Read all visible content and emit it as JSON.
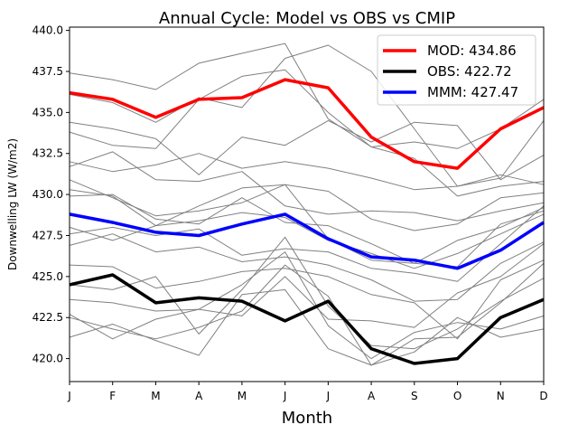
{
  "chart_data": {
    "type": "line",
    "title": "Annual Cycle: Model vs OBS vs CMIP",
    "xlabel": "Month",
    "ylabel": "Downwelling LW (W/m2)",
    "categories": [
      "J",
      "F",
      "M",
      "A",
      "M",
      "J",
      "J",
      "A",
      "S",
      "O",
      "N",
      "D"
    ],
    "ylim": [
      418.6,
      440.2
    ],
    "yticks": [
      420.0,
      422.5,
      425.0,
      427.5,
      430.0,
      432.5,
      435.0,
      437.5,
      440.0
    ],
    "ytick_labels": [
      "420.0",
      "422.5",
      "425.0",
      "427.5",
      "430.0",
      "432.5",
      "435.0",
      "437.5",
      "440.0"
    ],
    "grid": false,
    "legend_position": "top-right",
    "background_series_color": "#808080",
    "background_series": [
      [
        437.4,
        437.0,
        436.4,
        438.0,
        438.6,
        439.2,
        434.6,
        432.9,
        433.2,
        432.8,
        434.0,
        435.8
      ],
      [
        436.1,
        435.6,
        434.4,
        435.9,
        435.3,
        438.3,
        439.1,
        437.5,
        434.0,
        430.5,
        431.0,
        434.5
      ],
      [
        434.4,
        434.0,
        433.4,
        431.2,
        433.5,
        433.0,
        434.5,
        433.2,
        434.4,
        434.2,
        430.9,
        432.4
      ],
      [
        433.8,
        433.0,
        432.8,
        435.8,
        437.2,
        437.6,
        435.0,
        432.9,
        432.2,
        429.9,
        430.5,
        430.8
      ],
      [
        432.0,
        431.4,
        431.8,
        432.5,
        431.6,
        432.0,
        431.6,
        431.0,
        430.3,
        430.5,
        431.2,
        430.6
      ],
      [
        431.7,
        432.6,
        430.9,
        430.8,
        431.4,
        429.3,
        428.8,
        429.0,
        428.9,
        428.4,
        429.0,
        429.5
      ],
      [
        430.9,
        429.8,
        428.7,
        429.0,
        429.5,
        430.6,
        430.2,
        428.5,
        427.8,
        428.2,
        429.8,
        430.1
      ],
      [
        430.3,
        429.9,
        428.1,
        429.3,
        430.4,
        430.6,
        427.3,
        426.0,
        425.8,
        425.6,
        428.2,
        429.0
      ],
      [
        429.9,
        430.0,
        428.5,
        428.2,
        429.8,
        428.3,
        428.1,
        427.0,
        425.8,
        427.2,
        428.0,
        429.2
      ],
      [
        428.0,
        427.2,
        428.1,
        428.4,
        428.9,
        428.6,
        427.2,
        426.4,
        425.5,
        426.4,
        427.6,
        428.8
      ],
      [
        427.6,
        428.0,
        427.5,
        427.9,
        426.3,
        426.7,
        426.5,
        425.5,
        425.2,
        424.7,
        427.0,
        429.3
      ],
      [
        426.9,
        427.6,
        426.5,
        426.8,
        425.9,
        426.2,
        425.7,
        424.8,
        423.5,
        423.6,
        425.8,
        427.1
      ],
      [
        425.7,
        425.6,
        424.3,
        424.7,
        425.3,
        425.5,
        425.0,
        423.9,
        423.4,
        421.2,
        424.8,
        426.0
      ],
      [
        424.5,
        424.2,
        425.0,
        421.5,
        424.2,
        427.4,
        423.2,
        420.8,
        420.6,
        421.8,
        423.5,
        424.9
      ],
      [
        423.6,
        423.4,
        422.9,
        423.0,
        422.6,
        425.0,
        422.4,
        422.3,
        421.9,
        424.0,
        425.0,
        427.0
      ],
      [
        422.7,
        421.2,
        422.4,
        423.0,
        424.5,
        426.5,
        422.0,
        420.0,
        421.6,
        422.2,
        421.8,
        422.6
      ],
      [
        422.5,
        421.8,
        421.2,
        421.9,
        422.9,
        425.7,
        423.8,
        419.6,
        421.2,
        421.3,
        423.4,
        425.8
      ],
      [
        421.3,
        422.1,
        421.1,
        420.2,
        423.9,
        424.2,
        420.6,
        419.6,
        420.4,
        422.5,
        421.3,
        421.8
      ]
    ],
    "series": [
      {
        "name": "MOD",
        "label": "MOD: 434.86",
        "color": "#ff0000",
        "values": [
          436.2,
          435.8,
          434.7,
          435.8,
          435.9,
          437.0,
          436.5,
          433.5,
          432.0,
          431.6,
          434.0,
          435.3
        ]
      },
      {
        "name": "OBS",
        "label": "OBS: 422.72",
        "color": "#000000",
        "values": [
          424.5,
          425.1,
          423.4,
          423.7,
          423.5,
          422.3,
          423.5,
          420.6,
          419.7,
          420.0,
          422.5,
          423.6
        ]
      },
      {
        "name": "MMM",
        "label": "MMM: 427.47",
        "color": "#0000ff",
        "values": [
          428.8,
          428.3,
          427.7,
          427.5,
          428.2,
          428.8,
          427.3,
          426.2,
          426.0,
          425.5,
          426.6,
          428.3
        ]
      }
    ]
  }
}
